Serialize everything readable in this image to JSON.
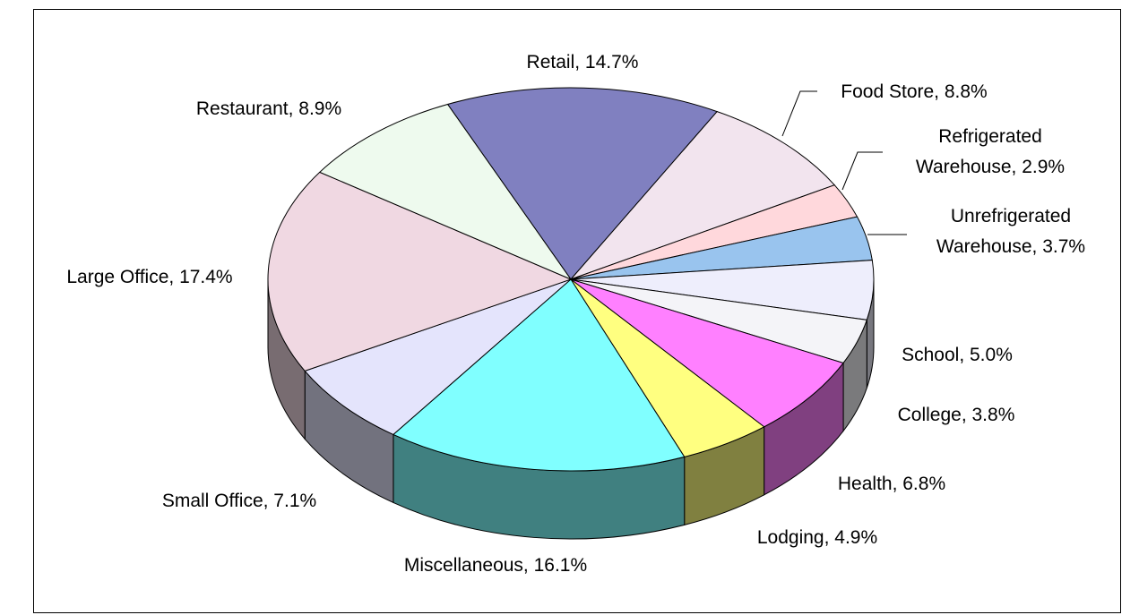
{
  "chart_data": {
    "type": "pie",
    "value_labels": [
      "Retail, 14.7%",
      "Food Store, 8.8%",
      "Refrigerated Warehouse, 2.9%",
      "Unrefrigerated Warehouse, 3.7%",
      "School, 5.0%",
      "College, 3.8%",
      "Health, 6.8%",
      "Lodging, 4.9%",
      "Miscellaneous, 16.1%",
      "Small Office, 7.1%",
      "Large Office, 17.4%",
      "Restaurant, 8.9%"
    ],
    "values": [
      14.7,
      8.8,
      2.9,
      3.7,
      5.0,
      3.8,
      6.8,
      4.9,
      16.1,
      7.1,
      17.4,
      8.9
    ],
    "colors": [
      "#8080c0",
      "#f2e4ee",
      "#ffd8dc",
      "#99c4ee",
      "#eeeefc",
      "#f4f4f8",
      "#ff80ff",
      "#ffff80",
      "#80ffff",
      "#e4e4fc",
      "#f0d8e2",
      "#eefaee"
    ]
  }
}
